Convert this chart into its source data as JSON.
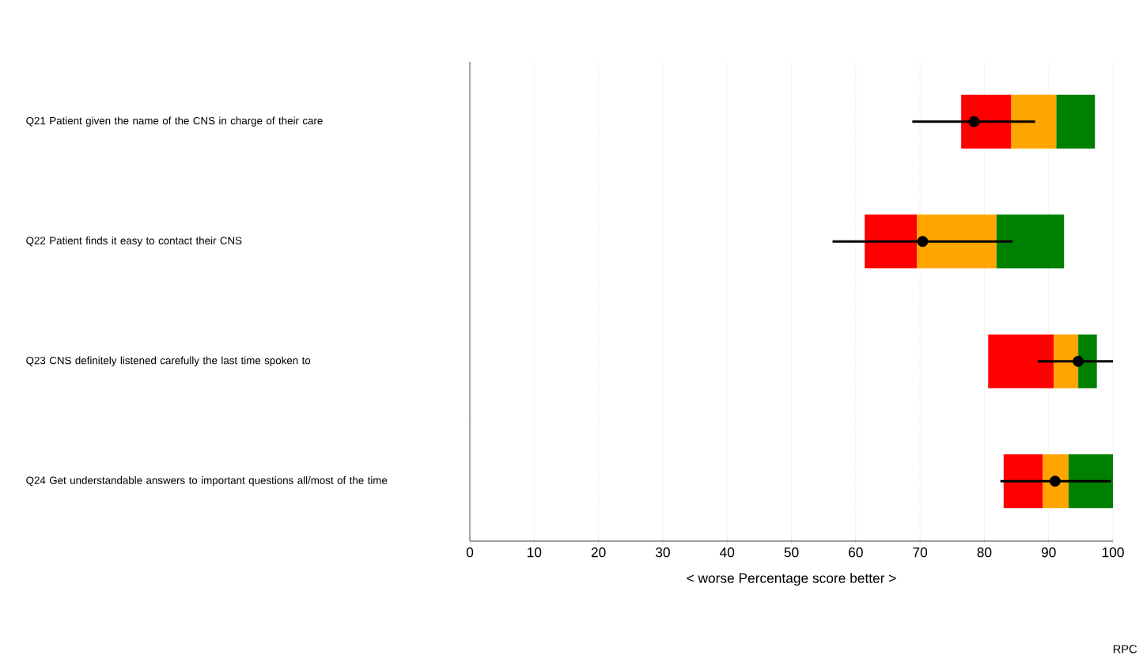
{
  "chart_data": {
    "type": "bar",
    "orientation": "horizontal",
    "categories": [
      "Q21 Patient given the name of the CNS in charge of their care",
      "Q22 Patient finds it easy to contact their CNS",
      "Q23 CNS definitely listened carefully the last time spoken to",
      "Q24 Get understandable answers to important questions all/most of the time"
    ],
    "series": [
      {
        "color": "#ff0000",
        "base": [
          76.4,
          61.4,
          80.6,
          83.0
        ],
        "values": [
          7.8,
          8.1,
          10.2,
          6.1
        ]
      },
      {
        "color": "#ffa500",
        "base": [
          84.2,
          69.5,
          90.8,
          89.1
        ],
        "values": [
          7.0,
          12.4,
          3.8,
          4.0
        ]
      },
      {
        "color": "#008000",
        "base": [
          91.2,
          81.9,
          94.6,
          93.1
        ],
        "values": [
          6.0,
          10.5,
          2.9,
          6.9
        ]
      },
      {
        "type": "scatter",
        "color": "#000000",
        "marker": "circle",
        "values": [
          78.4,
          70.4,
          94.6,
          91.0
        ],
        "errors": [
          [
            68.8,
            87.9
          ],
          [
            56.4,
            84.4
          ],
          [
            88.3,
            100
          ],
          [
            82.5,
            99.7
          ]
        ]
      }
    ],
    "xlim": [
      0,
      100
    ],
    "xticks": [
      0,
      10,
      20,
      30,
      40,
      50,
      60,
      70,
      80,
      90,
      100
    ],
    "xlabel": "< worse    Percentage score    better >",
    "grid": "x",
    "annotations": [
      "RPC"
    ]
  }
}
